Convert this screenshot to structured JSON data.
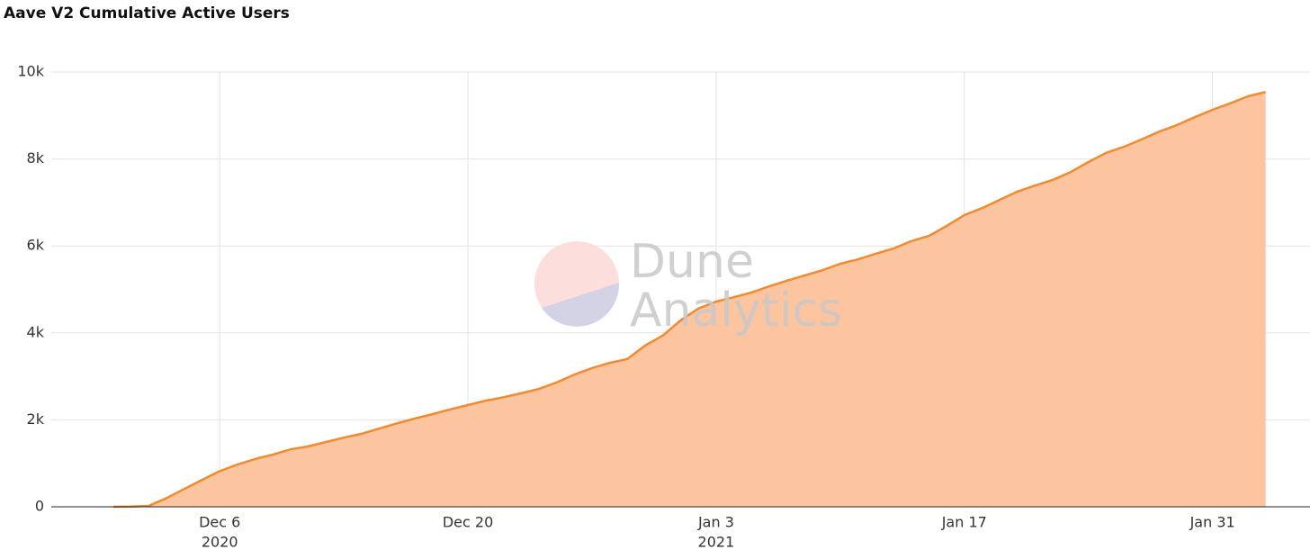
{
  "chart_data": {
    "type": "area",
    "title": "Aave V2 Cumulative Active Users",
    "watermark": [
      "Dune",
      "Analytics"
    ],
    "x": [
      "2020-11-30",
      "2020-12-01",
      "2020-12-02",
      "2020-12-03",
      "2020-12-04",
      "2020-12-05",
      "2020-12-06",
      "2020-12-07",
      "2020-12-08",
      "2020-12-09",
      "2020-12-10",
      "2020-12-11",
      "2020-12-12",
      "2020-12-13",
      "2020-12-14",
      "2020-12-15",
      "2020-12-16",
      "2020-12-17",
      "2020-12-18",
      "2020-12-19",
      "2020-12-20",
      "2020-12-21",
      "2020-12-22",
      "2020-12-23",
      "2020-12-24",
      "2020-12-25",
      "2020-12-26",
      "2020-12-27",
      "2020-12-28",
      "2020-12-29",
      "2020-12-30",
      "2020-12-31",
      "2021-01-01",
      "2021-01-02",
      "2021-01-03",
      "2021-01-04",
      "2021-01-05",
      "2021-01-06",
      "2021-01-07",
      "2021-01-08",
      "2021-01-09",
      "2021-01-10",
      "2021-01-11",
      "2021-01-12",
      "2021-01-13",
      "2021-01-14",
      "2021-01-15",
      "2021-01-16",
      "2021-01-17",
      "2021-01-18",
      "2021-01-19",
      "2021-01-20",
      "2021-01-21",
      "2021-01-22",
      "2021-01-23",
      "2021-01-24",
      "2021-01-25",
      "2021-01-26",
      "2021-01-27",
      "2021-01-28",
      "2021-01-29",
      "2021-01-30",
      "2021-01-31",
      "2021-02-01",
      "2021-02-02",
      "2021-02-03"
    ],
    "values": [
      0,
      5,
      20,
      200,
      410,
      620,
      820,
      970,
      1100,
      1200,
      1320,
      1390,
      1490,
      1590,
      1680,
      1800,
      1920,
      2030,
      2130,
      2240,
      2340,
      2440,
      2520,
      2610,
      2710,
      2860,
      3040,
      3190,
      3310,
      3400,
      3710,
      3940,
      4290,
      4560,
      4720,
      4820,
      4930,
      5070,
      5200,
      5320,
      5440,
      5590,
      5690,
      5820,
      5940,
      6110,
      6230,
      6460,
      6710,
      6870,
      7060,
      7250,
      7390,
      7520,
      7700,
      7930,
      8140,
      8280,
      8450,
      8630,
      8780,
      8960,
      9130,
      9280,
      9440,
      9540
    ],
    "color": "#f28a30",
    "fill_color": "#fdc4a0",
    "xlim": [
      "2020-11-26T12:00:00Z",
      "2021-02-05T12:00:00Z"
    ],
    "xticks": [
      {
        "value": "2020-12-06",
        "label": "Dec 6",
        "sublabel": "2020"
      },
      {
        "value": "2020-12-20",
        "label": "Dec 20"
      },
      {
        "value": "2021-01-03",
        "label": "Jan 3",
        "sublabel": "2021"
      },
      {
        "value": "2021-01-17",
        "label": "Jan 17"
      },
      {
        "value": "2021-01-31",
        "label": "Jan 31"
      }
    ],
    "ylim": [
      0,
      10000
    ],
    "yticks": [
      0,
      {
        "value": 2000,
        "label": "2k"
      },
      {
        "value": 4000,
        "label": "4k"
      },
      {
        "value": 6000,
        "label": "6k"
      },
      {
        "value": 8000,
        "label": "8k"
      },
      {
        "value": 10000,
        "label": "10k"
      }
    ],
    "grid": true
  }
}
